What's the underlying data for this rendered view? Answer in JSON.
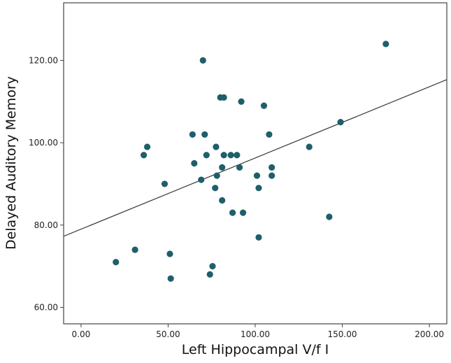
{
  "chart_data": {
    "type": "scatter",
    "title": "",
    "xlabel": "Left Hippocampal V/f I",
    "ylabel": "Delayed Auditory Memory",
    "xlim": [
      -10,
      210
    ],
    "ylim": [
      56,
      134
    ],
    "x_ticks": [
      0,
      50,
      100,
      150,
      200
    ],
    "x_tick_labels": [
      "0.00",
      "50.00",
      "100.00",
      "150.00",
      "200.00"
    ],
    "y_ticks": [
      60,
      80,
      100,
      120
    ],
    "y_tick_labels": [
      "60.00",
      "80.00",
      "100.00",
      "120.00"
    ],
    "grid": false,
    "legend": "none",
    "point_color": "#1e5f6b",
    "line_color": "#444444",
    "series": [
      {
        "points": [
          [
            20,
            71
          ],
          [
            31,
            74
          ],
          [
            36,
            97
          ],
          [
            38,
            99
          ],
          [
            48,
            90
          ],
          [
            51,
            73
          ],
          [
            51.5,
            67
          ],
          [
            64,
            102
          ],
          [
            65,
            95
          ],
          [
            69,
            91
          ],
          [
            70,
            120
          ],
          [
            71,
            102
          ],
          [
            72,
            97
          ],
          [
            74,
            68
          ],
          [
            75.5,
            70
          ],
          [
            77,
            89
          ],
          [
            77.5,
            99
          ],
          [
            78,
            92
          ],
          [
            80,
            111
          ],
          [
            81,
            94
          ],
          [
            81,
            86
          ],
          [
            82,
            111
          ],
          [
            82,
            97
          ],
          [
            86,
            97
          ],
          [
            87,
            83
          ],
          [
            89.5,
            97
          ],
          [
            91,
            94
          ],
          [
            92,
            110
          ],
          [
            93,
            83
          ],
          [
            101,
            92
          ],
          [
            102,
            89
          ],
          [
            102,
            77
          ],
          [
            105,
            109
          ],
          [
            108,
            102
          ],
          [
            109.5,
            94
          ],
          [
            109.5,
            92
          ],
          [
            131,
            99
          ],
          [
            142.5,
            82
          ],
          [
            149,
            105
          ],
          [
            175,
            124
          ]
        ]
      }
    ],
    "fit_line": {
      "intercept": 79.0,
      "slope": 0.173
    }
  }
}
